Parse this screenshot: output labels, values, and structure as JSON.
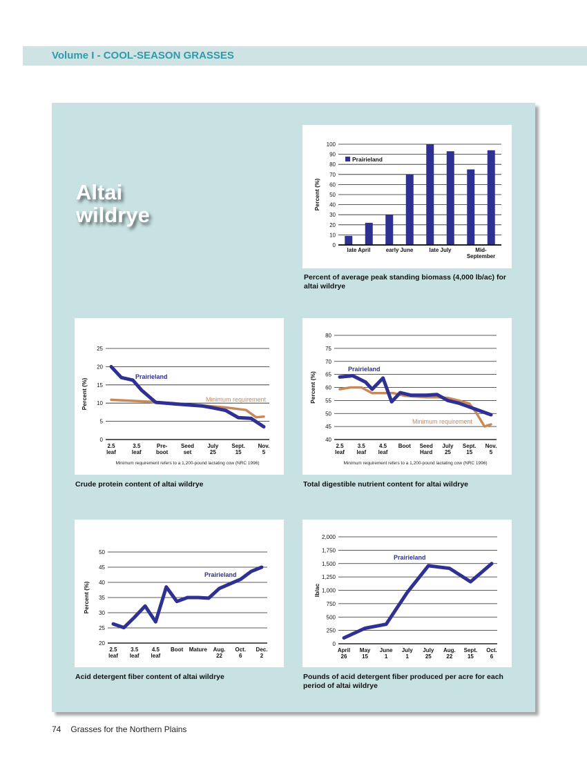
{
  "header": {
    "title": "Volume I - COOL-SEASON GRASSES"
  },
  "species": {
    "title_line1": "Altai",
    "title_line2": "wildrye"
  },
  "footer": {
    "page_number": "74",
    "book_title": "Grasses for the Northern Plains"
  },
  "colors": {
    "series": "#2e3192",
    "minimum": "#c8895a",
    "panel": "#c8e2e4",
    "header_text": "#2f9aa8"
  },
  "chart_data": [
    {
      "type": "bar",
      "caption": "Percent of average peak standing biomass (4,000 lb/ac) for altai wildrye",
      "ylabel": "Percent (%)",
      "ylim": [
        0,
        100
      ],
      "yticks": [
        "0",
        "10",
        "20",
        "30",
        "40",
        "50",
        "60",
        "70",
        "80",
        "90",
        "100"
      ],
      "xlabels": [
        [
          "late April"
        ],
        [
          "early June"
        ],
        [
          "late July"
        ],
        [
          "Mid-",
          "September"
        ]
      ],
      "series": [
        {
          "name": "Prairieland",
          "values": [
            9,
            22,
            30,
            70,
            100,
            93,
            75,
            94
          ]
        }
      ],
      "legend": "top-left"
    },
    {
      "type": "line",
      "caption": "Crude protein content of altai wildrye",
      "ylabel": "Percent (%)",
      "ylim": [
        0,
        25
      ],
      "yticks": [
        "0",
        "5",
        "10",
        "15",
        "20",
        "25"
      ],
      "categories": [
        [
          "2.5",
          "leaf"
        ],
        [
          "3.5",
          "leaf"
        ],
        [
          "Pre-",
          "boot"
        ],
        [
          "Seed",
          "set"
        ],
        [
          "July",
          "25"
        ],
        [
          "Sept.",
          "15"
        ],
        [
          "Nov.",
          "5"
        ]
      ],
      "footnote": "Minimum requirement refers to a 1,200-pound lactating cow (NRC 1996)",
      "series": [
        {
          "name": "Prairieland",
          "x": [
            0,
            0.4,
            0.85,
            1.2,
            1.75,
            2.5,
            3,
            3.6,
            4,
            4.5,
            5,
            5.5,
            6
          ],
          "y": [
            20,
            17,
            16.3,
            13.5,
            10.2,
            9.8,
            9.5,
            9.2,
            8.7,
            8,
            6,
            5.8,
            3.5
          ]
        },
        {
          "name": "Minimum requirement",
          "x": [
            0,
            1.5,
            2.5,
            3.5,
            4.5,
            5.3,
            5.7,
            6
          ],
          "y": [
            10.9,
            10.4,
            9.6,
            9.4,
            8.8,
            8.1,
            6.1,
            6.3
          ]
        }
      ]
    },
    {
      "type": "line",
      "caption": "Total digestible nutrient content for altai wildrye",
      "ylabel": "Percent (%)",
      "ylim": [
        40,
        80
      ],
      "yticks": [
        "40",
        "45",
        "50",
        "55",
        "60",
        "65",
        "70",
        "75",
        "80"
      ],
      "categories": [
        [
          "2.5",
          "leaf"
        ],
        [
          "3.5",
          "leaf"
        ],
        [
          "4.5",
          "leaf"
        ],
        [
          "Boot",
          ""
        ],
        [
          "Seed",
          "Hard"
        ],
        [
          "July",
          "25"
        ],
        [
          "Sept.",
          "15"
        ],
        [
          "Nov.",
          "5"
        ]
      ],
      "footnote": "Minimum requirement refers to a 1,200-pound lactating cow (NRC 1996)",
      "series": [
        {
          "name": "Prairieland",
          "x": [
            0,
            0.6,
            1.2,
            1.5,
            2,
            2.4,
            2.8,
            3.3,
            4,
            4.5,
            5,
            5.5,
            6,
            6.5,
            7
          ],
          "y": [
            64,
            64.5,
            62,
            59.3,
            63.6,
            54.5,
            58,
            57,
            57,
            57.3,
            55,
            54,
            52.5,
            51,
            49.5
          ]
        },
        {
          "name": "Minimum requirement",
          "x": [
            0,
            0.5,
            1,
            1.5,
            2,
            2.5,
            3,
            3.5,
            4,
            4.5,
            5,
            5.5,
            6,
            6.3,
            6.7,
            7
          ],
          "y": [
            59.3,
            60,
            60,
            57.8,
            57.8,
            57.8,
            56.8,
            56.5,
            56.2,
            56.2,
            56,
            55,
            53.8,
            50.5,
            45,
            45.8
          ]
        }
      ]
    },
    {
      "type": "line",
      "caption": "Acid detergent fiber content of altai wildrye",
      "ylabel": "Percent (%)",
      "ylim": [
        20,
        50
      ],
      "yticks": [
        "20",
        "25",
        "30",
        "35",
        "40",
        "45",
        "50"
      ],
      "categories": [
        [
          "2.5",
          "leaf"
        ],
        [
          "3.5",
          "leaf"
        ],
        [
          "4.5",
          "leaf"
        ],
        [
          "Boot",
          ""
        ],
        [
          "Mature",
          ""
        ],
        [
          "Aug.",
          "22"
        ],
        [
          "Oct.",
          "6"
        ],
        [
          "Dec.",
          "2"
        ]
      ],
      "series": [
        {
          "name": "Prairieland",
          "x": [
            0,
            0.5,
            1,
            1.5,
            2,
            2.5,
            3,
            3.5,
            4,
            4.5,
            5,
            5.5,
            6,
            6.5,
            7
          ],
          "y": [
            26.3,
            25.1,
            28.5,
            32.2,
            27,
            38.5,
            33.7,
            35,
            35,
            34.8,
            38,
            39.5,
            41,
            43.6,
            45
          ]
        }
      ]
    },
    {
      "type": "line",
      "caption": "Pounds of acid detergent fiber produced per acre for each period of altai wildrye",
      "ylabel": "lb/ac",
      "ylim": [
        0,
        2000
      ],
      "yticks": [
        "0",
        "250",
        "500",
        "750",
        "1,000",
        "1,250",
        "1,500",
        "1,750",
        "2,000"
      ],
      "categories": [
        [
          "April",
          "26"
        ],
        [
          "May",
          "15"
        ],
        [
          "June",
          "1"
        ],
        [
          "July",
          "1"
        ],
        [
          "July",
          "25"
        ],
        [
          "Aug.",
          "22"
        ],
        [
          "Sept.",
          "15"
        ],
        [
          "Oct.",
          "6"
        ]
      ],
      "series": [
        {
          "name": "Prairieland",
          "x": [
            0,
            1,
            2,
            3,
            4,
            5,
            6,
            7
          ],
          "y": [
            110,
            290,
            365,
            960,
            1460,
            1410,
            1160,
            1500
          ]
        }
      ]
    }
  ]
}
